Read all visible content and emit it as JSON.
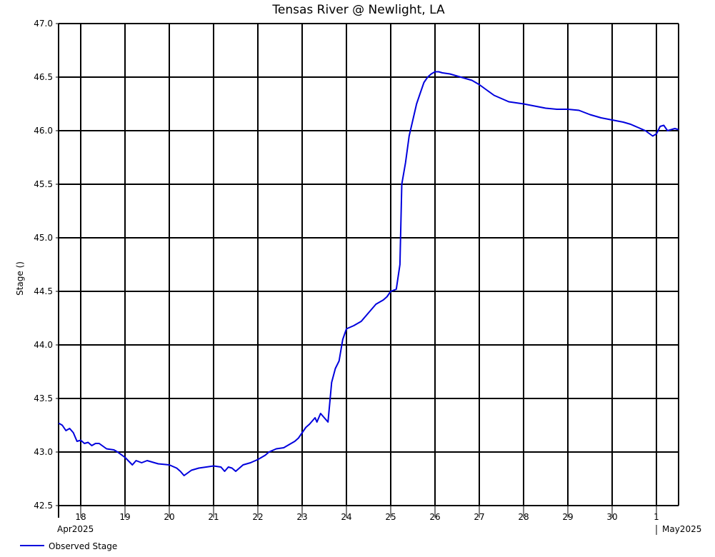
{
  "chart_data": {
    "type": "line",
    "title": "Tensas River @ Newlight, LA",
    "ylabel": "Stage ()",
    "ylim": [
      42.5,
      47.0
    ],
    "y_ticks": [
      "42.5",
      "43.0",
      "43.5",
      "44.0",
      "44.5",
      "45.0",
      "45.5",
      "46.0",
      "46.5",
      "47.0"
    ],
    "x_range": [
      "2025-04-17 12:00",
      "2025-05-01 12:00"
    ],
    "x_tick_labels": [
      "18",
      "19",
      "20",
      "21",
      "22",
      "23",
      "24",
      "25",
      "26",
      "27",
      "28",
      "29",
      "30",
      "1"
    ],
    "x_period_labels": [
      "Apr2025",
      "May2025"
    ],
    "grid": true,
    "legend_position": "bottom-left",
    "colors": {
      "series": "#0000dd",
      "grid": "#000000"
    },
    "series": [
      {
        "name": "Observed Stage",
        "x": [
          "2025-04-17 12:00",
          "2025-04-17 14:00",
          "2025-04-17 16:00",
          "2025-04-17 18:00",
          "2025-04-17 20:00",
          "2025-04-17 22:00",
          "2025-04-18 00:00",
          "2025-04-18 02:00",
          "2025-04-18 04:00",
          "2025-04-18 06:00",
          "2025-04-18 08:00",
          "2025-04-18 10:00",
          "2025-04-18 14:00",
          "2025-04-18 18:00",
          "2025-04-18 20:00",
          "2025-04-19 00:00",
          "2025-04-19 04:00",
          "2025-04-19 06:00",
          "2025-04-19 09:00",
          "2025-04-19 12:00",
          "2025-04-19 16:00",
          "2025-04-19 18:00",
          "2025-04-20 00:00",
          "2025-04-20 04:00",
          "2025-04-20 06:00",
          "2025-04-20 08:00",
          "2025-04-20 12:00",
          "2025-04-20 16:00",
          "2025-04-20 20:00",
          "2025-04-21 00:00",
          "2025-04-21 04:00",
          "2025-04-21 06:00",
          "2025-04-21 08:00",
          "2025-04-21 10:00",
          "2025-04-21 12:00",
          "2025-04-21 16:00",
          "2025-04-21 20:00",
          "2025-04-22 00:00",
          "2025-04-22 04:00",
          "2025-04-22 06:00",
          "2025-04-22 10:00",
          "2025-04-22 14:00",
          "2025-04-22 18:00",
          "2025-04-22 20:00",
          "2025-04-22 22:00",
          "2025-04-23 00:00",
          "2025-04-23 02:00",
          "2025-04-23 04:00",
          "2025-04-23 06:00",
          "2025-04-23 07:00",
          "2025-04-23 08:00",
          "2025-04-23 10:00",
          "2025-04-23 14:00",
          "2025-04-23 16:00",
          "2025-04-23 18:00",
          "2025-04-23 20:00",
          "2025-04-23 22:00",
          "2025-04-24 00:00",
          "2025-04-24 04:00",
          "2025-04-24 08:00",
          "2025-04-24 12:00",
          "2025-04-24 16:00",
          "2025-04-24 18:00",
          "2025-04-24 20:00",
          "2025-04-24 22:00",
          "2025-04-25 00:00",
          "2025-04-25 03:00",
          "2025-04-25 05:00",
          "2025-04-25 06:00",
          "2025-04-25 08:00",
          "2025-04-25 10:00",
          "2025-04-25 12:00",
          "2025-04-25 14:00",
          "2025-04-25 16:00",
          "2025-04-25 18:00",
          "2025-04-25 20:00",
          "2025-04-25 22:00",
          "2025-04-26 00:00",
          "2025-04-26 02:00",
          "2025-04-26 04:00",
          "2025-04-26 08:00",
          "2025-04-26 12:00",
          "2025-04-26 16:00",
          "2025-04-26 20:00",
          "2025-04-27 00:00",
          "2025-04-27 04:00",
          "2025-04-27 08:00",
          "2025-04-27 12:00",
          "2025-04-27 16:00",
          "2025-04-28 00:00",
          "2025-04-28 06:00",
          "2025-04-28 12:00",
          "2025-04-28 18:00",
          "2025-04-29 00:00",
          "2025-04-29 06:00",
          "2025-04-29 12:00",
          "2025-04-29 18:00",
          "2025-04-30 00:00",
          "2025-04-30 06:00",
          "2025-04-30 10:00",
          "2025-04-30 14:00",
          "2025-04-30 18:00",
          "2025-04-30 22:00",
          "2025-05-01 00:00",
          "2025-05-01 02:00",
          "2025-05-01 04:00",
          "2025-05-01 06:00",
          "2025-05-01 08:00",
          "2025-05-01 10:00",
          "2025-05-01 12:00"
        ],
        "y": [
          43.27,
          43.25,
          43.2,
          43.22,
          43.18,
          43.1,
          43.11,
          43.08,
          43.09,
          43.06,
          43.08,
          43.08,
          43.03,
          43.02,
          43.0,
          42.95,
          42.88,
          42.92,
          42.9,
          42.92,
          42.9,
          42.89,
          42.88,
          42.85,
          42.82,
          42.78,
          42.83,
          42.85,
          42.86,
          42.87,
          42.86,
          42.82,
          42.86,
          42.85,
          42.82,
          42.88,
          42.9,
          42.93,
          42.97,
          43.0,
          43.03,
          43.04,
          43.08,
          43.1,
          43.13,
          43.18,
          43.23,
          43.26,
          43.3,
          43.32,
          43.28,
          43.36,
          43.28,
          43.65,
          43.78,
          43.85,
          44.05,
          44.15,
          44.18,
          44.22,
          44.3,
          44.38,
          44.4,
          44.42,
          44.45,
          44.5,
          44.52,
          44.75,
          45.5,
          45.7,
          45.95,
          46.1,
          46.25,
          46.35,
          46.45,
          46.5,
          46.53,
          46.55,
          46.55,
          46.54,
          46.53,
          46.51,
          46.49,
          46.47,
          46.43,
          46.38,
          46.33,
          46.3,
          46.27,
          46.25,
          46.23,
          46.21,
          46.2,
          46.2,
          46.19,
          46.15,
          46.12,
          46.1,
          46.08,
          46.06,
          46.03,
          46.0,
          45.95,
          45.97,
          46.04,
          46.05,
          46.0,
          46.01,
          46.02,
          46.01
        ]
      }
    ]
  }
}
